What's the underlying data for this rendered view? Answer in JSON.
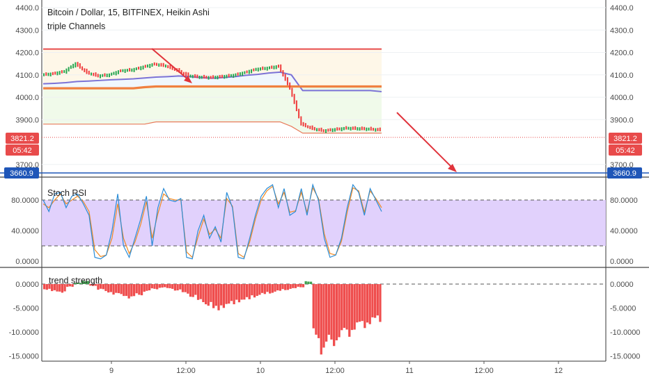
{
  "colors": {
    "up": "#26a650",
    "down": "#ef3c3c",
    "price_tag": "#e84b4b",
    "level_tag": "#1f56b8",
    "rsi_band": "#dcc9fb",
    "rsi_k": "#2a8cd6",
    "rsi_d": "#f08a24",
    "trend_neg": "#ef4d4d",
    "trend_pos": "#3fa24f",
    "arrow": "#e0333b"
  },
  "chart_data": [
    {
      "type": "line",
      "title": "Bitcoin / Dollar, 15, BITFINEX, Heikin Ashi",
      "subtitle": "triple Channels",
      "xlabel": "",
      "ylabel": "",
      "x_ticks": [
        "9",
        "12:00",
        "10",
        "12:00",
        "11",
        "12:00",
        "12"
      ],
      "y_ticks": [
        "4400.0",
        "4300.0",
        "4200.0",
        "4100.0",
        "4000.0",
        "3900.0",
        "3700.0"
      ],
      "ylim": [
        3660,
        4420
      ],
      "last_price": "3821.2",
      "countdown": "05:42",
      "level": "3660.9",
      "series": [
        {
          "values": [
            4100,
            4105,
            4115,
            4150,
            4110,
            4095,
            4100,
            4118,
            4122,
            4135,
            4148,
            4140,
            4120,
            4096,
            4090,
            4088,
            4092,
            4098,
            4110,
            4125,
            4130,
            4138,
            4040,
            3880,
            3860,
            3850,
            3856,
            3862,
            3860,
            3858,
            3854
          ]
        }
      ],
      "channels": [
        {
          "values": [
            4215,
            4215,
            4215,
            4215,
            4215,
            4215,
            4215,
            4215,
            4215,
            4215,
            4215,
            4215,
            4215,
            4215,
            4215,
            4215,
            4215,
            4215,
            4215,
            4215,
            4215,
            4215,
            4215,
            4215,
            4215,
            4215,
            4215,
            4215,
            4215,
            4215,
            4215
          ]
        },
        {
          "values": [
            4060,
            4062,
            4065,
            4070,
            4072,
            4075,
            4078,
            4080,
            4082,
            4086,
            4090,
            4092,
            4095,
            4092,
            4088,
            4085,
            4088,
            4092,
            4098,
            4102,
            4108,
            4112,
            4100,
            4030,
            4030,
            4030,
            4030,
            4030,
            4030,
            4030,
            4025
          ]
        },
        {
          "values": [
            4040,
            4040,
            4040,
            4040,
            4040,
            4040,
            4040,
            4040,
            4040,
            4045,
            4048,
            4048,
            4048,
            4048,
            4048,
            4048,
            4048,
            4048,
            4048,
            4048,
            4048,
            4048,
            4048,
            4048,
            4048,
            4048,
            4048,
            4048,
            4048,
            4048,
            4048
          ]
        },
        {
          "values": [
            3880,
            3880,
            3880,
            3880,
            3880,
            3880,
            3880,
            3880,
            3880,
            3880,
            3890,
            3890,
            3890,
            3890,
            3890,
            3890,
            3890,
            3890,
            3890,
            3890,
            3890,
            3890,
            3870,
            3840,
            3840,
            3840,
            3840,
            3840,
            3840,
            3840,
            3840
          ]
        }
      ]
    },
    {
      "type": "line",
      "title": "Stoch RSI",
      "y_ticks": [
        "80.0000",
        "40.0000",
        "0.0000"
      ],
      "ylim": [
        -2,
        102
      ],
      "band": [
        20,
        80
      ],
      "series": [
        {
          "values": [
            80,
            65,
            88,
            90,
            70,
            85,
            88,
            75,
            60,
            5,
            3,
            8,
            40,
            88,
            20,
            5,
            30,
            55,
            85,
            20,
            70,
            95,
            80,
            78,
            82,
            5,
            3,
            40,
            60,
            30,
            45,
            25,
            90,
            70,
            5,
            3,
            30,
            60,
            85,
            95,
            100,
            70,
            95,
            60,
            65,
            95,
            60,
            100,
            80,
            30,
            5,
            8,
            30,
            70,
            100,
            90,
            60,
            95,
            80,
            65
          ]
        },
        {
          "values": [
            75,
            70,
            80,
            88,
            75,
            80,
            85,
            78,
            65,
            15,
            6,
            8,
            30,
            75,
            30,
            10,
            25,
            48,
            78,
            30,
            62,
            88,
            82,
            80,
            80,
            12,
            5,
            32,
            55,
            35,
            42,
            30,
            82,
            72,
            10,
            5,
            25,
            55,
            80,
            92,
            98,
            75,
            90,
            64,
            66,
            90,
            64,
            96,
            82,
            36,
            10,
            8,
            26,
            64,
            96,
            92,
            64,
            92,
            82,
            70
          ]
        }
      ]
    },
    {
      "type": "bar",
      "title": "trend strength",
      "y_ticks": [
        "0.0000",
        "-5.0000",
        "-10.0000",
        "-15.0000"
      ],
      "ylim": [
        -16,
        1.5
      ],
      "values": [
        -1.2,
        -1.6,
        -1.8,
        -0.6,
        0.3,
        0.7,
        -0.4,
        -1.2,
        -1.8,
        -2.2,
        -2.6,
        -3.0,
        -2.4,
        -1.6,
        -1.1,
        -0.8,
        -1.0,
        -1.4,
        -2.0,
        -2.8,
        -3.8,
        -4.6,
        -5.6,
        -5.0,
        -4.4,
        -3.8,
        -3.4,
        -2.8,
        -2.3,
        -2.0,
        -1.6,
        -1.3,
        -1.0,
        -0.7,
        0.6,
        -11.5,
        -14.8,
        -13.0,
        -12.0,
        -11.0,
        -10.0,
        -9.2,
        -8.6,
        -8.0
      ]
    }
  ]
}
